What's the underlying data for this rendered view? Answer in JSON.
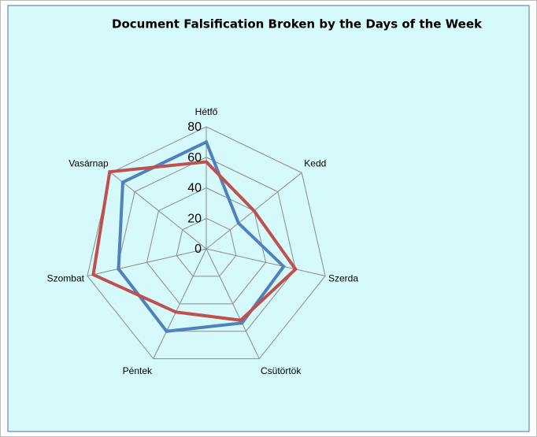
{
  "chart_data": {
    "type": "radar",
    "title": "Document Falsification Broken by the Days of the Week",
    "categories": [
      "Hétfő",
      "Kedd",
      "Szerda",
      "Csütörtök",
      "Péntek",
      "Szombat",
      "Vasárnap"
    ],
    "series": [
      {
        "color": "#4f81bd",
        "values": [
          70,
          27,
          52,
          54,
          60,
          59,
          70
        ]
      },
      {
        "color": "#c0504d",
        "values": [
          57,
          40,
          60,
          52,
          46,
          76,
          81
        ]
      }
    ],
    "ylim": [
      0,
      80
    ],
    "yticks": [
      0,
      20,
      40,
      60,
      80
    ],
    "grid": true
  }
}
